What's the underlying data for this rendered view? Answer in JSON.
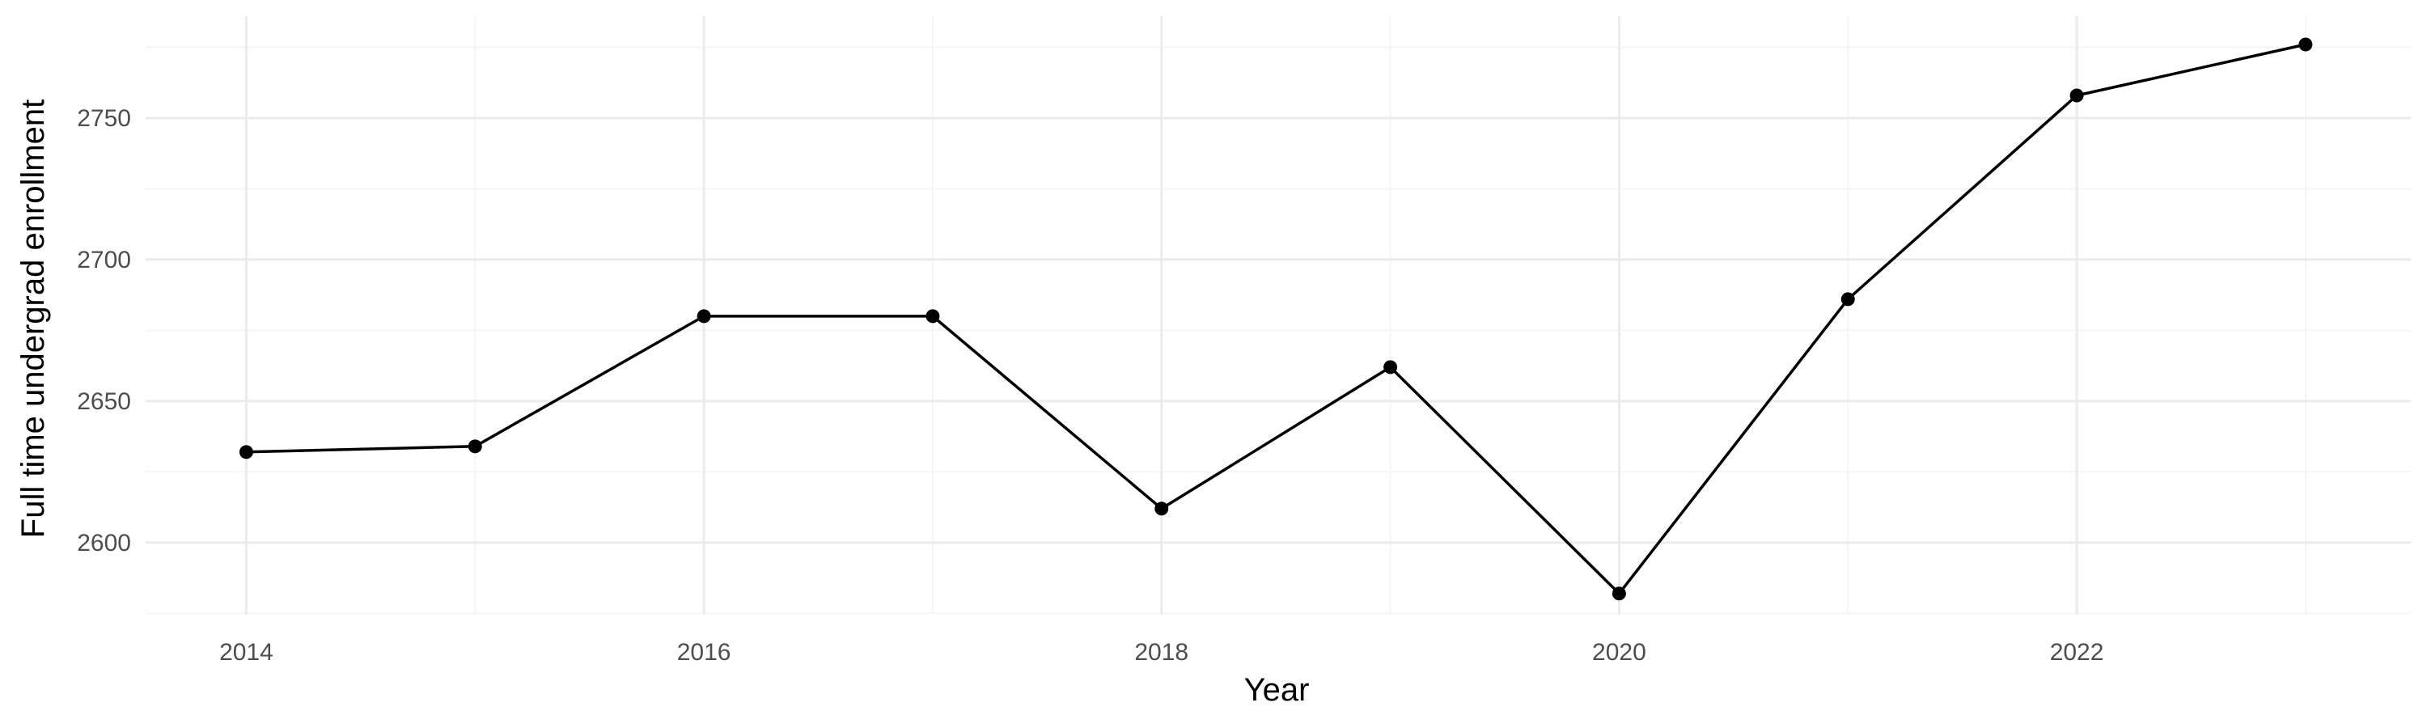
{
  "chart_data": {
    "type": "line",
    "title": "",
    "xlabel": "Year",
    "ylabel": "Full time undergrad enrollment",
    "x": [
      2014,
      2015,
      2016,
      2017,
      2018,
      2019,
      2020,
      2021,
      2022,
      2023
    ],
    "series": [
      {
        "values": [
          2632,
          2634,
          2680,
          2680,
          2612,
          2662,
          2582,
          2686,
          2758,
          2776
        ]
      }
    ],
    "xlim": [
      2013.56,
      2023.46
    ],
    "ylim": [
      2574.5,
      2786
    ],
    "x_ticks": [
      2014,
      2016,
      2018,
      2020,
      2022
    ],
    "x_minor_ticks": [
      2015,
      2017,
      2019,
      2021,
      2023
    ],
    "y_ticks": [
      2600,
      2650,
      2700,
      2750
    ],
    "y_minor_ticks": [
      2575,
      2625,
      2675,
      2725,
      2775
    ],
    "grid": true,
    "legend": "none",
    "colors": {
      "line": "#000000",
      "point": "#000000",
      "grid_major": "#ebebeb",
      "grid_minor": "#f5f5f5",
      "tick_text": "#4d4d4d"
    }
  }
}
